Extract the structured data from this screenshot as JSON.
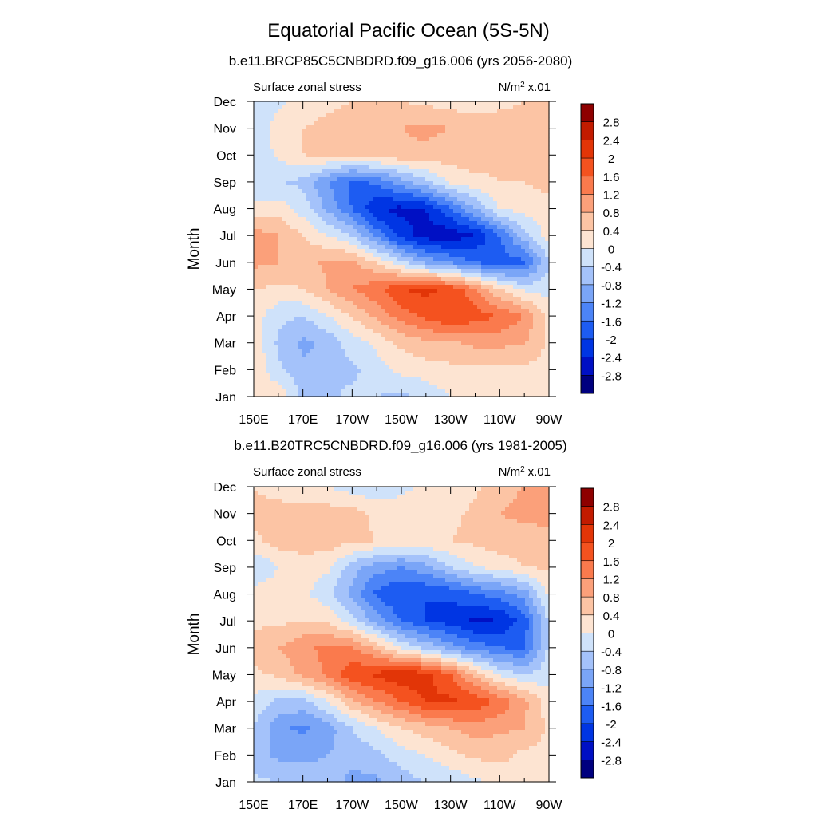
{
  "figure": {
    "title": "Equatorial Pacific Ocean (5S-5N)"
  },
  "chart_data": [
    {
      "type": "heatmap",
      "title": "b.e11.BRCP85C5CNBDRD.f09_g16.006 (yrs 2056-2080)",
      "variable_label": "Surface zonal stress",
      "units_label": "N/m",
      "units_exponent": "2",
      "units_scale": "x.01",
      "ylabel": "Month",
      "xlabel": "",
      "x_ticks": [
        "150E",
        "170E",
        "170W",
        "150W",
        "130W",
        "110W",
        "90W"
      ],
      "y_ticks": [
        "Jan",
        "Feb",
        "Mar",
        "Apr",
        "May",
        "Jun",
        "Jul",
        "Aug",
        "Sep",
        "Oct",
        "Nov",
        "Dec"
      ],
      "x_range": [
        150,
        270
      ],
      "x_grid": [
        150,
        160,
        170,
        180,
        190,
        200,
        210,
        220,
        230,
        240,
        250,
        260,
        270
      ],
      "y_grid": [
        1,
        2,
        3,
        4,
        5,
        6,
        7,
        8,
        9,
        10,
        11,
        12
      ],
      "z": [
        [
          0.2,
          0.3,
          -0.5,
          -0.5,
          -0.3,
          -0.4,
          -0.5,
          -0.3,
          0.0,
          0.2,
          0.2,
          0.3,
          0.3
        ],
        [
          0.3,
          -0.3,
          -0.7,
          -0.5,
          -0.5,
          -0.2,
          0.1,
          0.2,
          0.3,
          0.3,
          0.3,
          0.3,
          0.3
        ],
        [
          0.3,
          -0.5,
          -0.9,
          -0.7,
          -0.2,
          0.1,
          0.5,
          0.7,
          0.7,
          0.9,
          0.9,
          0.8,
          0.3
        ],
        [
          0.2,
          -0.3,
          -0.4,
          0.0,
          0.4,
          0.9,
          1.4,
          1.7,
          2.0,
          1.8,
          1.6,
          1.2,
          0.3
        ],
        [
          0.4,
          0.3,
          0.4,
          0.8,
          1.2,
          1.5,
          2.0,
          2.1,
          1.9,
          1.3,
          0.4,
          -0.1,
          -0.2
        ],
        [
          0.9,
          0.8,
          0.6,
          0.9,
          0.9,
          0.4,
          -0.3,
          -0.9,
          -1.2,
          -1.6,
          -1.8,
          -1.7,
          -0.4
        ],
        [
          1.0,
          0.8,
          0.4,
          0.0,
          -0.4,
          -1.3,
          -2.2,
          -2.6,
          -2.7,
          -2.4,
          -1.6,
          -0.6,
          0.2
        ],
        [
          0.1,
          0.2,
          -0.2,
          -0.9,
          -1.6,
          -2.4,
          -2.5,
          -2.4,
          -1.6,
          -0.8,
          0.0,
          0.2,
          0.3
        ],
        [
          -0.4,
          -0.4,
          -0.5,
          -1.2,
          -1.7,
          -1.5,
          -1.0,
          -0.5,
          0.1,
          0.3,
          0.4,
          0.4,
          0.5
        ],
        [
          -0.3,
          0.1,
          0.4,
          0.5,
          0.5,
          0.6,
          0.7,
          0.7,
          0.6,
          0.6,
          0.5,
          0.5,
          0.6
        ],
        [
          -0.4,
          0.2,
          0.4,
          0.5,
          0.6,
          0.7,
          0.8,
          0.9,
          0.8,
          0.6,
          0.6,
          0.5,
          0.7
        ],
        [
          -0.3,
          -0.1,
          0.2,
          0.3,
          0.4,
          0.4,
          0.4,
          0.3,
          0.2,
          0.2,
          0.3,
          0.4,
          0.5
        ]
      ],
      "color_levels": [
        -2.8,
        -2.4,
        -2,
        -1.6,
        -1.2,
        -0.8,
        -0.4,
        0,
        0.4,
        0.8,
        1.2,
        1.6,
        2,
        2.4,
        2.8
      ],
      "colorbar_labels": [
        "2.8",
        "2.4",
        "2",
        "1.6",
        "1.2",
        "0.8",
        "0.4",
        "0",
        "-0.4",
        "-0.8",
        "-1.2",
        "-1.6",
        "-2",
        "-2.4",
        "-2.8"
      ]
    },
    {
      "type": "heatmap",
      "title": "b.e11.B20TRC5CNBDRD.f09_g16.006 (yrs 1981-2005)",
      "variable_label": "Surface zonal stress",
      "units_label": "N/m",
      "units_exponent": "2",
      "units_scale": "x.01",
      "ylabel": "Month",
      "xlabel": "",
      "x_ticks": [
        "150E",
        "170E",
        "170W",
        "150W",
        "130W",
        "110W",
        "90W"
      ],
      "y_ticks": [
        "Jan",
        "Feb",
        "Mar",
        "Apr",
        "May",
        "Jun",
        "Jul",
        "Aug",
        "Sep",
        "Oct",
        "Nov",
        "Dec"
      ],
      "x_range": [
        150,
        270
      ],
      "x_grid": [
        150,
        160,
        170,
        180,
        190,
        200,
        210,
        220,
        230,
        240,
        250,
        260,
        270
      ],
      "y_grid": [
        1,
        2,
        3,
        4,
        5,
        6,
        7,
        8,
        9,
        10,
        11,
        12
      ],
      "z": [
        [
          -0.3,
          -0.4,
          -0.6,
          -0.6,
          -0.9,
          -0.9,
          -0.6,
          -0.4,
          -0.3,
          -0.1,
          0.2,
          0.3,
          0.3
        ],
        [
          -0.6,
          -0.9,
          -0.9,
          -0.8,
          -0.7,
          -0.5,
          -0.2,
          0.0,
          0.3,
          0.5,
          0.5,
          0.3,
          0.3
        ],
        [
          -0.4,
          -1.1,
          -1.3,
          -1.0,
          -0.4,
          0.0,
          0.4,
          0.6,
          0.8,
          1.0,
          0.9,
          0.8,
          0.3
        ],
        [
          -0.1,
          -0.5,
          -0.5,
          0.0,
          0.7,
          1.2,
          1.6,
          2.0,
          2.1,
          1.9,
          1.5,
          0.9,
          0.2
        ],
        [
          0.3,
          0.5,
          0.9,
          1.3,
          1.9,
          2.1,
          2.3,
          2.2,
          1.6,
          0.7,
          -0.1,
          -0.4,
          -0.2
        ],
        [
          0.6,
          0.8,
          1.1,
          1.3,
          1.2,
          0.7,
          -0.1,
          -0.5,
          -1.0,
          -1.4,
          -1.6,
          -1.7,
          -0.3
        ],
        [
          0.3,
          0.3,
          0.4,
          0.3,
          -0.2,
          -1.0,
          -1.6,
          -2.0,
          -2.2,
          -2.5,
          -2.4,
          -1.8,
          -0.3
        ],
        [
          0.2,
          0.2,
          0.1,
          -0.3,
          -0.9,
          -1.7,
          -2.0,
          -2.0,
          -1.9,
          -1.6,
          -1.4,
          -1.0,
          0.1
        ],
        [
          -0.4,
          0.0,
          0.2,
          0.1,
          -0.6,
          -1.0,
          -1.2,
          -0.9,
          -0.4,
          0.0,
          0.2,
          0.4,
          0.5
        ],
        [
          0.3,
          0.6,
          0.6,
          0.6,
          0.5,
          0.4,
          0.3,
          0.3,
          0.4,
          0.5,
          0.6,
          0.6,
          0.7
        ],
        [
          0.5,
          0.6,
          0.6,
          0.6,
          0.6,
          0.3,
          0.2,
          0.2,
          0.3,
          0.5,
          0.8,
          0.9,
          0.9
        ],
        [
          0.4,
          0.2,
          0.1,
          0.0,
          -0.2,
          -0.3,
          -0.1,
          0.1,
          0.1,
          0.3,
          0.7,
          0.8,
          0.9
        ]
      ],
      "color_levels": [
        -2.8,
        -2.4,
        -2,
        -1.6,
        -1.2,
        -0.8,
        -0.4,
        0,
        0.4,
        0.8,
        1.2,
        1.6,
        2,
        2.4,
        2.8
      ],
      "colorbar_labels": [
        "2.8",
        "2.4",
        "2",
        "1.6",
        "1.2",
        "0.8",
        "0.4",
        "0",
        "-0.4",
        "-0.8",
        "-1.2",
        "-1.6",
        "-2",
        "-2.4",
        "-2.8"
      ]
    }
  ],
  "colormap": [
    "#00007f",
    "#0010c4",
    "#0035e3",
    "#1d5cf2",
    "#4c84f7",
    "#7aa5f7",
    "#a4c2fa",
    "#cfe2fa",
    "#fde4d2",
    "#fcc4a4",
    "#fba07a",
    "#fa7a4d",
    "#f4521f",
    "#e23507",
    "#c21b00",
    "#8e0000"
  ]
}
